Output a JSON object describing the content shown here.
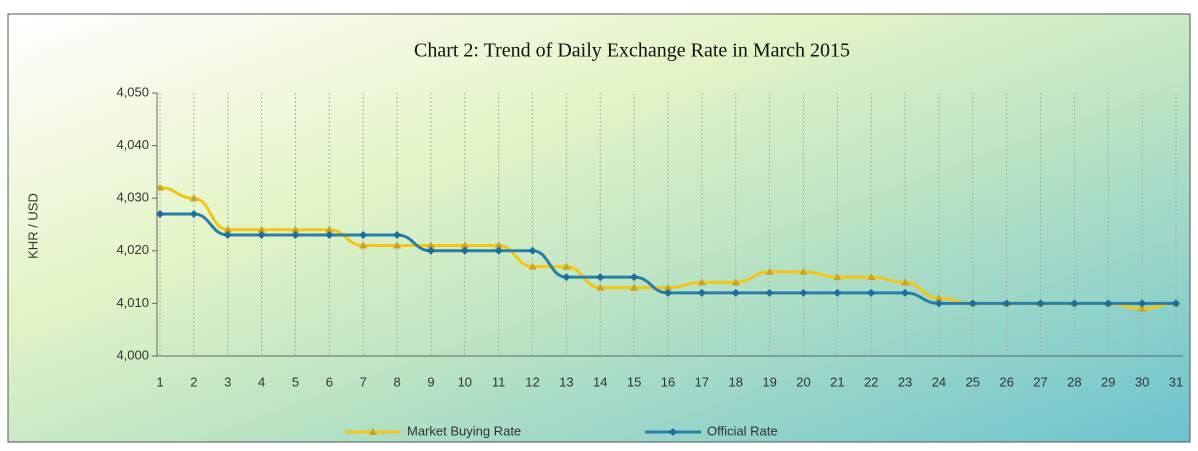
{
  "chart_data": {
    "type": "line",
    "title": "Chart 2: Trend of Daily Exchange Rate in March 2015",
    "y_label": "KHR / USD",
    "categories": [
      "1",
      "2",
      "3",
      "4",
      "5",
      "6",
      "7",
      "8",
      "9",
      "10",
      "11",
      "12",
      "13",
      "14",
      "15",
      "16",
      "17",
      "18",
      "19",
      "20",
      "21",
      "22",
      "23",
      "24",
      "25",
      "26",
      "27",
      "28",
      "29",
      "30",
      "31"
    ],
    "series": [
      {
        "name": "Market Buying Rate",
        "color": "#f5c518",
        "marker": "triangle",
        "values": [
          4032,
          4030,
          4024,
          4024,
          4024,
          4024,
          4021,
          4021,
          4021,
          4021,
          4021,
          4017,
          4017,
          4013,
          4013,
          4013,
          4014,
          4014,
          4016,
          4016,
          4015,
          4015,
          4014,
          4011,
          4010,
          4010,
          4010,
          4010,
          4010,
          4009,
          4010
        ]
      },
      {
        "name": "Official Rate",
        "color": "#2a7fa8",
        "marker": "diamond",
        "values": [
          4027,
          4027,
          4023,
          4023,
          4023,
          4023,
          4023,
          4023,
          4020,
          4020,
          4020,
          4020,
          4015,
          4015,
          4015,
          4012,
          4012,
          4012,
          4012,
          4012,
          4012,
          4012,
          4012,
          4010,
          4010,
          4010,
          4010,
          4010,
          4010,
          4010,
          4010
        ]
      }
    ],
    "ylim": [
      4000,
      4050
    ],
    "yticks": [
      {
        "value": 4000,
        "label": "4,000"
      },
      {
        "value": 4010,
        "label": "4,010"
      },
      {
        "value": 4020,
        "label": "4,020"
      },
      {
        "value": 4030,
        "label": "4,030"
      },
      {
        "value": 4040,
        "label": "4,040"
      },
      {
        "value": 4050,
        "label": "4,050"
      }
    ],
    "grid": true
  }
}
